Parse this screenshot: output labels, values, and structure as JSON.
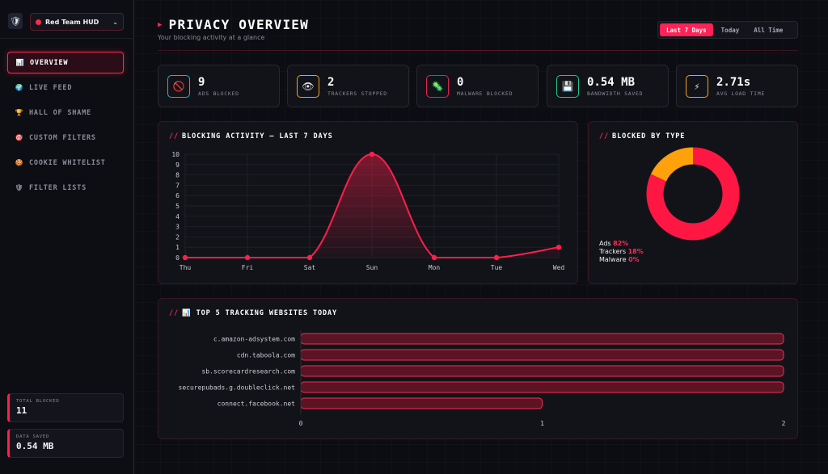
{
  "sidebar": {
    "logo_icon": "shield-logo-icon",
    "profile": {
      "label": "Red Team HUD",
      "icon": "red-dot-icon"
    },
    "nav": [
      {
        "label": "OVERVIEW",
        "icon": "📊",
        "active": true
      },
      {
        "label": "LIVE FEED",
        "icon": "🌍"
      },
      {
        "label": "HALL OF SHAME",
        "icon": "🏆"
      },
      {
        "label": "CUSTOM FILTERS",
        "icon": "🎯"
      },
      {
        "label": "COOKIE WHITELIST",
        "icon": "🍪"
      },
      {
        "label": "FILTER LISTS",
        "icon": "🛡"
      }
    ],
    "stats": [
      {
        "label": "TOTAL BLOCKED",
        "value": "11"
      },
      {
        "label": "DATA SAVED",
        "value": "0.54 MB"
      }
    ]
  },
  "header": {
    "title": "PRIVACY OVERVIEW",
    "subtitle": "Your blocking activity at a glance",
    "ranges": [
      {
        "label": "Last 7 Days",
        "active": true
      },
      {
        "label": "Today"
      },
      {
        "label": "All Time"
      }
    ]
  },
  "kpis": [
    {
      "value": "9",
      "label": "ADS BLOCKED",
      "icon": "🚫",
      "color": "#1fb6c9"
    },
    {
      "value": "2",
      "label": "TRACKERS STOPPED",
      "icon": "👁",
      "color": "#f2a21a"
    },
    {
      "value": "0",
      "label": "MALWARE BLOCKED",
      "icon": "🦠",
      "color": "#e0264f"
    },
    {
      "value": "0.54 MB",
      "label": "BANDWIDTH SAVED",
      "icon": "💾",
      "color": "#25c48a"
    },
    {
      "value": "2.71s",
      "label": "AVG LOAD TIME",
      "icon": "⚡",
      "color": "#f2a21a"
    }
  ],
  "activity": {
    "slashes": "//",
    "title": "BLOCKING ACTIVITY — LAST 7 DAYS"
  },
  "by_type": {
    "slashes": "//",
    "title": "BLOCKED BY TYPE",
    "legend": [
      {
        "name": "Ads",
        "pct": "82%"
      },
      {
        "name": "Trackers",
        "pct": "18%"
      },
      {
        "name": "Malware",
        "pct": "0%"
      }
    ]
  },
  "top_sites": {
    "slashes": "//",
    "icon": "📊",
    "title": "TOP 5 TRACKING WEBSITES TODAY"
  },
  "chart_data": [
    {
      "type": "line",
      "categories": [
        "Thu",
        "Fri",
        "Sat",
        "Sun",
        "Mon",
        "Tue",
        "Wed"
      ],
      "values": [
        0,
        0,
        0,
        10,
        0,
        0,
        1
      ],
      "ylim": [
        0,
        10
      ],
      "yticks": [
        "0",
        "1",
        "2",
        "3",
        "4",
        "5",
        "6",
        "7",
        "8",
        "9",
        "10"
      ],
      "grid": true,
      "color": "#ff1f4b"
    },
    {
      "type": "pie",
      "labels": [
        "Ads",
        "Trackers",
        "Malware"
      ],
      "values": [
        82,
        18,
        0
      ],
      "colors": [
        "#ff1744",
        "#ffa10a",
        "#7a1d2e"
      ]
    },
    {
      "type": "bar",
      "orientation": "horizontal",
      "categories": [
        "c.amazon-adsystem.com",
        "cdn.taboola.com",
        "sb.scorecardresearch.com",
        "securepubads.g.doubleclick.net",
        "connect.facebook.net"
      ],
      "values": [
        2,
        2,
        2,
        2,
        1
      ],
      "xlim": [
        0,
        2
      ],
      "xticks": [
        "0",
        "1",
        "2"
      ]
    }
  ]
}
